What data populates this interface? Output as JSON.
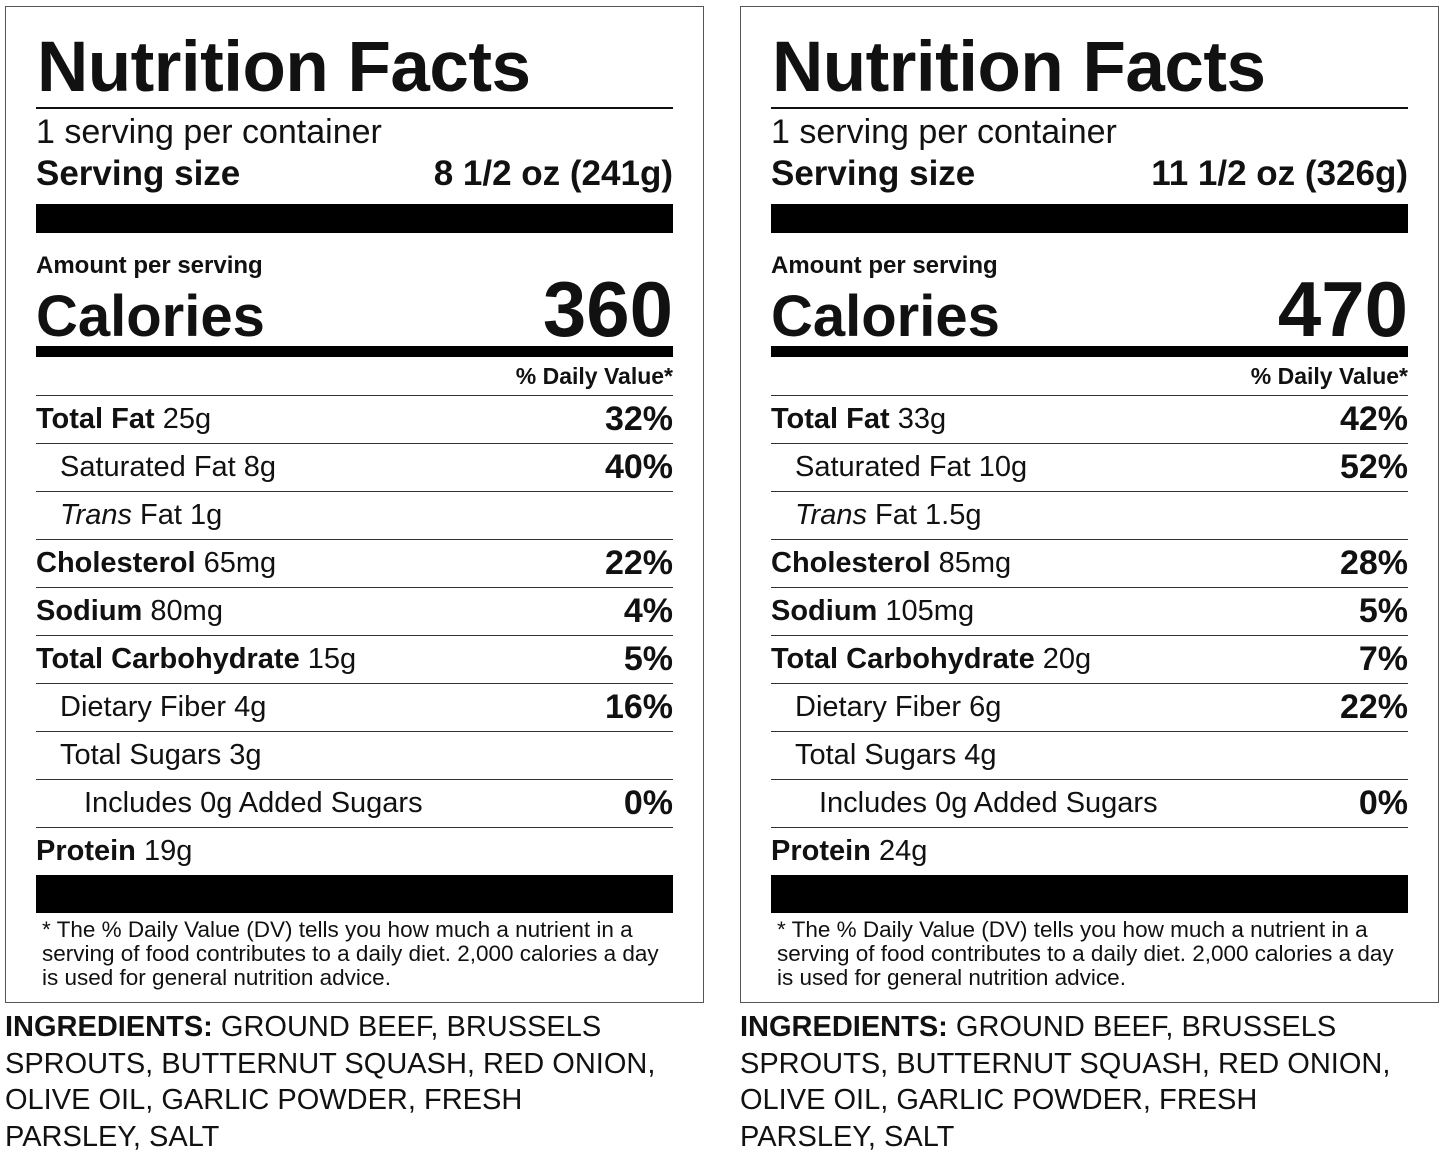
{
  "labels": [
    {
      "title": "Nutrition Facts",
      "servings_per_container": "1 serving per container",
      "serving_size_label": "Serving size",
      "serving_size_value": "8 1/2 oz (241g)",
      "amount_per_serving": "Amount per serving",
      "calories_label": "Calories",
      "calories_value": "360",
      "dv_header": "% Daily Value*",
      "total_fat": {
        "name": "Total Fat",
        "amount": "25g",
        "dv": "32%"
      },
      "saturated_fat": {
        "name": "Saturated Fat",
        "amount": "8g",
        "dv": "40%"
      },
      "trans_fat": {
        "name_italic": "Trans",
        "name": "Fat",
        "amount": "1g"
      },
      "cholesterol": {
        "name": "Cholesterol",
        "amount": "65mg",
        "dv": "22%"
      },
      "sodium": {
        "name": "Sodium",
        "amount": "80mg",
        "dv": "4%"
      },
      "total_carbohydrate": {
        "name": "Total Carbohydrate",
        "amount": "15g",
        "dv": "5%"
      },
      "dietary_fiber": {
        "name": "Dietary Fiber",
        "amount": "4g",
        "dv": "16%"
      },
      "total_sugars": {
        "name": "Total Sugars",
        "amount": "3g"
      },
      "added_sugars": {
        "name": "Includes 0g Added Sugars",
        "dv": "0%"
      },
      "protein": {
        "name": "Protein",
        "amount": "19g"
      },
      "footnote": "* The % Daily Value (DV) tells you how much a nutrient in a serving of food contributes to a daily diet. 2,000 calories a day is used for general nutrition advice.",
      "ingredients_label": "INGREDIENTS:",
      "ingredients_text": "GROUND BEEF, BRUSSELS SPROUTS, BUTTERNUT SQUASH, RED ONION, OLIVE OIL, GARLIC POWDER, FRESH PARSLEY, SALT"
    },
    {
      "title": "Nutrition Facts",
      "servings_per_container": "1 serving per container",
      "serving_size_label": "Serving size",
      "serving_size_value": "11 1/2 oz (326g)",
      "amount_per_serving": "Amount per serving",
      "calories_label": "Calories",
      "calories_value": "470",
      "dv_header": "% Daily Value*",
      "total_fat": {
        "name": "Total Fat",
        "amount": "33g",
        "dv": "42%"
      },
      "saturated_fat": {
        "name": "Saturated Fat",
        "amount": "10g",
        "dv": "52%"
      },
      "trans_fat": {
        "name_italic": "Trans",
        "name": "Fat",
        "amount": "1.5g"
      },
      "cholesterol": {
        "name": "Cholesterol",
        "amount": "85mg",
        "dv": "28%"
      },
      "sodium": {
        "name": "Sodium",
        "amount": "105mg",
        "dv": "5%"
      },
      "total_carbohydrate": {
        "name": "Total Carbohydrate",
        "amount": "20g",
        "dv": "7%"
      },
      "dietary_fiber": {
        "name": "Dietary Fiber",
        "amount": "6g",
        "dv": "22%"
      },
      "total_sugars": {
        "name": "Total Sugars",
        "amount": "4g"
      },
      "added_sugars": {
        "name": "Includes 0g Added Sugars",
        "dv": "0%"
      },
      "protein": {
        "name": "Protein",
        "amount": "24g"
      },
      "footnote": "* The % Daily Value (DV) tells you how much a nutrient in a serving of food contributes to a daily diet. 2,000 calories a day is used for general nutrition advice.",
      "ingredients_label": "INGREDIENTS:",
      "ingredients_text": "GROUND BEEF, BRUSSELS SPROUTS, BUTTERNUT SQUASH, RED ONION, OLIVE OIL, GARLIC POWDER, FRESH PARSLEY, SALT"
    }
  ]
}
